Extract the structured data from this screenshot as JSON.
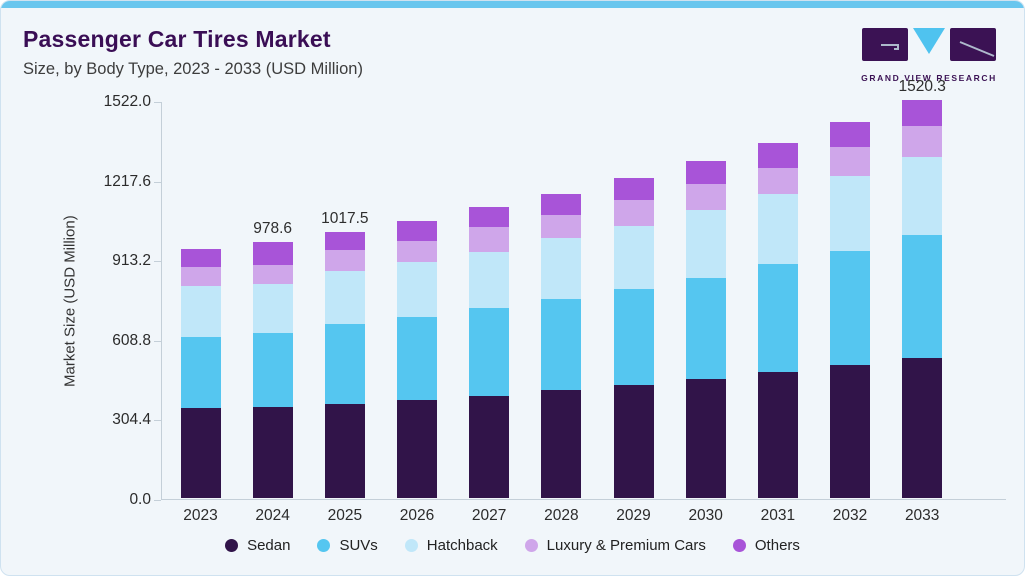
{
  "header": {
    "title": "Passenger Car Tires Market",
    "subtitle": "Size, by Body Type, 2023 - 2033 (USD Million)"
  },
  "logo": {
    "text": "GRAND VIEW RESEARCH",
    "purple": "#3b1254",
    "cyan": "#4fc3ef"
  },
  "chart_data": {
    "type": "bar",
    "stacked": true,
    "title": "Passenger Car Tires Market Size, by Body Type, 2023 - 2033 (USD Million)",
    "xlabel": "",
    "ylabel": "Market Size (USD Million)",
    "ylim": [
      0,
      1522
    ],
    "yticks": [
      0.0,
      304.4,
      608.8,
      913.2,
      1217.6,
      1522.0
    ],
    "ytick_labels": [
      "0.0",
      "304.4",
      "608.8",
      "913.2",
      "1217.6",
      "1522.0"
    ],
    "grid": false,
    "legend_position": "bottom",
    "categories": [
      "2023",
      "2024",
      "2025",
      "2026",
      "2027",
      "2028",
      "2029",
      "2030",
      "2031",
      "2032",
      "2033"
    ],
    "series": [
      {
        "name": "Sedan",
        "color": "#311449",
        "values": [
          342.7,
          347.0,
          360.4,
          373.8,
          391.5,
          411.7,
          432.0,
          454.8,
          481.8,
          508.9,
          535.7
        ]
      },
      {
        "name": "SUVs",
        "color": "#55c6f0",
        "values": [
          271.2,
          285.9,
          303.6,
          317.3,
          333.3,
          349.5,
          366.9,
          386.1,
          411.7,
          435.7,
          469.7
        ]
      },
      {
        "name": "Hatchback",
        "color": "#c0e7f9",
        "values": [
          195.0,
          186.2,
          202.5,
          211.8,
          215.8,
          233.5,
          242.8,
          259.1,
          269.8,
          286.3,
          298.4
        ]
      },
      {
        "name": "Luxury & Premium Cars",
        "color": "#cfa6ea",
        "values": [
          73.7,
          70.4,
          81.0,
          78.2,
          94.7,
          87.5,
          97.3,
          99.6,
          98.7,
          110.5,
          120.2
        ]
      },
      {
        "name": "Others",
        "color": "#a854d8",
        "values": [
          71.4,
          89.1,
          70.0,
          78.5,
          78.2,
          81.0,
          85.0,
          89.1,
          97.2,
          94.8,
          96.3
        ]
      }
    ],
    "totals": [
      954.0,
      978.6,
      1017.5,
      1059.6,
      1113.5,
      1163.2,
      1224.0,
      1288.7,
      1359.2,
      1436.2,
      1520.3
    ],
    "total_labels": [
      "",
      "978.6",
      "1017.5",
      "",
      "",
      "",
      "",
      "",
      "",
      "",
      "1520.3"
    ]
  }
}
